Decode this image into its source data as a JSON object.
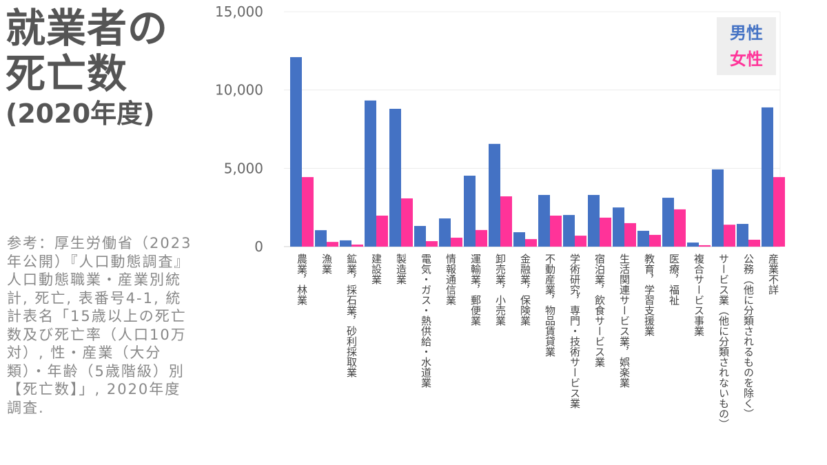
{
  "title": {
    "line1": "就業者の",
    "line2": "死亡数",
    "line3": "(2020年度)"
  },
  "note": "参考：厚生労働省（2023年公開）『人口動態調査』 人口動態職業・産業別統計, 死亡, 表番号4-1, 統計表名「15歳以上の死亡数及び死亡率（人口10万対）, 性・産業（大分類）・年齢（5歳階級）別【死亡数】」, 2020年度調査.",
  "chart_data": {
    "type": "bar",
    "title": "就業者の死亡数 (2020年度)",
    "xlabel": "",
    "ylabel": "",
    "ylim": [
      0,
      15000
    ],
    "yticks": [
      0,
      5000,
      10000,
      15000
    ],
    "ytick_labels": [
      "0",
      "5,000",
      "10,000",
      "15,000"
    ],
    "grid": true,
    "legend_position": "top-right",
    "categories": [
      "農業，林業",
      "漁業",
      "鉱業，採石業，砂利採取業",
      "建設業",
      "製造業",
      "電気・ガス・熱供給・水道業",
      "情報通信業",
      "運輸業，郵便業",
      "卸売業，小売業",
      "金融業，保険業",
      "不動産業，物品賃貸業",
      "学術研究，専門・技術サービス業",
      "宿泊業，飲食サービス業",
      "生活関連サービス業，娯楽業",
      "教育，学習支援業",
      "医療，福祉",
      "複合サービス事業",
      "サービス業（他に分類されないもの）",
      "公務（他に分類されるものを除く）",
      "産業不詳"
    ],
    "series": [
      {
        "name": "男性",
        "color": "#4472c4",
        "values": [
          12100,
          1050,
          400,
          9330,
          8800,
          1320,
          1800,
          4530,
          6560,
          920,
          3300,
          2020,
          3300,
          2500,
          1010,
          3120,
          260,
          4930,
          1450,
          8890
        ]
      },
      {
        "name": "女性",
        "color": "#ff3399",
        "values": [
          4440,
          300,
          130,
          1980,
          3080,
          350,
          570,
          1060,
          3210,
          480,
          1980,
          700,
          1850,
          1500,
          750,
          2380,
          90,
          1400,
          440,
          4440
        ]
      }
    ]
  }
}
